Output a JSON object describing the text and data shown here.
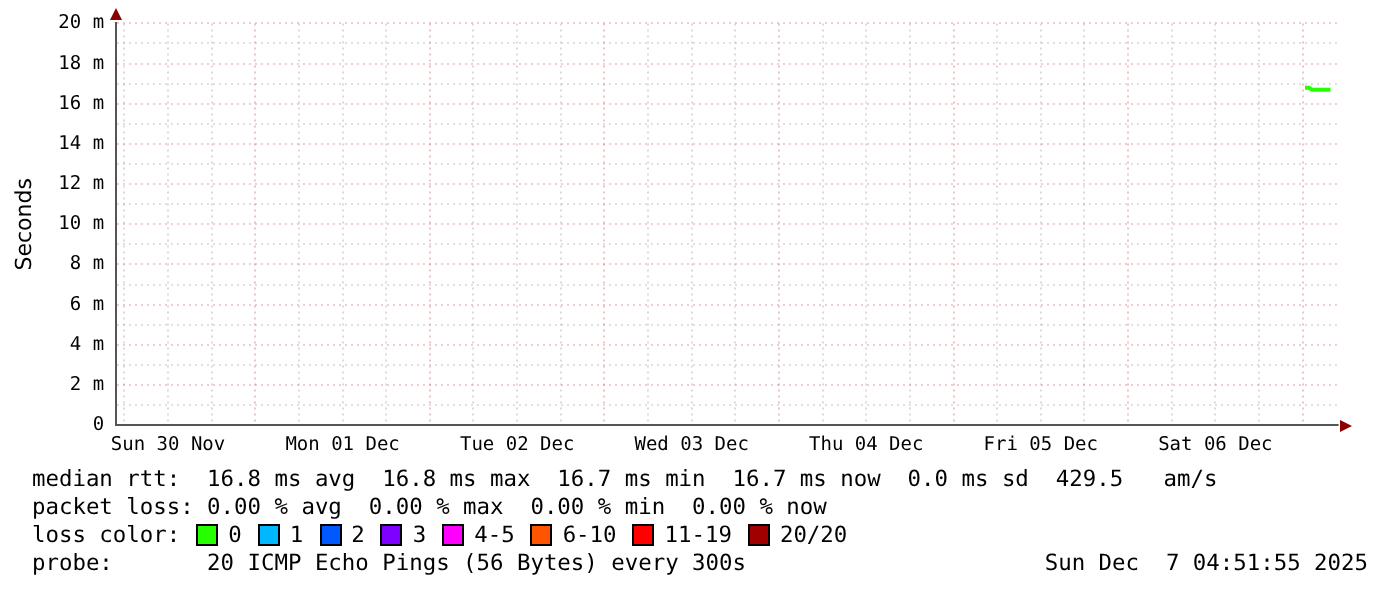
{
  "chart_data": {
    "type": "line",
    "ylabel": "Seconds",
    "x": [
      "2025-12-07T00:20",
      "2025-12-07T00:55",
      "2025-12-07T01:15",
      "2025-12-07T03:50"
    ],
    "xlim": [
      "2025-11-30T04:52",
      "2025-12-07T04:52"
    ],
    "xticks": [
      {
        "value": "2025-11-30T06:00",
        "label": null
      },
      {
        "value": "2025-11-30T12:00",
        "label": "Sun 30 Nov"
      },
      {
        "value": "2025-11-30T18:00",
        "label": null
      },
      {
        "value": "2025-12-01T00:00",
        "label": null
      },
      {
        "value": "2025-12-01T06:00",
        "label": null
      },
      {
        "value": "2025-12-01T12:00",
        "label": "Mon 01 Dec"
      },
      {
        "value": "2025-12-01T18:00",
        "label": null
      },
      {
        "value": "2025-12-02T00:00",
        "label": null
      },
      {
        "value": "2025-12-02T06:00",
        "label": null
      },
      {
        "value": "2025-12-02T12:00",
        "label": "Tue 02 Dec"
      },
      {
        "value": "2025-12-02T18:00",
        "label": null
      },
      {
        "value": "2025-12-03T00:00",
        "label": null
      },
      {
        "value": "2025-12-03T06:00",
        "label": null
      },
      {
        "value": "2025-12-03T12:00",
        "label": "Wed 03 Dec"
      },
      {
        "value": "2025-12-03T18:00",
        "label": null
      },
      {
        "value": "2025-12-04T00:00",
        "label": null
      },
      {
        "value": "2025-12-04T06:00",
        "label": null
      },
      {
        "value": "2025-12-04T12:00",
        "label": "Thu 04 Dec"
      },
      {
        "value": "2025-12-04T18:00",
        "label": null
      },
      {
        "value": "2025-12-05T00:00",
        "label": null
      },
      {
        "value": "2025-12-05T06:00",
        "label": null
      },
      {
        "value": "2025-12-05T12:00",
        "label": "Fri 05 Dec"
      },
      {
        "value": "2025-12-05T18:00",
        "label": null
      },
      {
        "value": "2025-12-06T00:00",
        "label": null
      },
      {
        "value": "2025-12-06T06:00",
        "label": null
      },
      {
        "value": "2025-12-06T12:00",
        "label": "Sat 06 Dec"
      },
      {
        "value": "2025-12-06T18:00",
        "label": null
      },
      {
        "value": "2025-12-07T00:00",
        "label": null
      }
    ],
    "ylim": [
      0,
      20
    ],
    "yticks": [
      0,
      {
        "value": 1,
        "label": null
      },
      {
        "value": 2,
        "label": "2 m"
      },
      {
        "value": 3,
        "label": null
      },
      {
        "value": 4,
        "label": "4 m"
      },
      {
        "value": 5,
        "label": null
      },
      {
        "value": 6,
        "label": "6 m"
      },
      {
        "value": 7,
        "label": null
      },
      {
        "value": 8,
        "label": "8 m"
      },
      {
        "value": 9,
        "label": null
      },
      {
        "value": 10,
        "label": "10 m"
      },
      {
        "value": 11,
        "label": null
      },
      {
        "value": 12,
        "label": "12 m"
      },
      {
        "value": 13,
        "label": null
      },
      {
        "value": 14,
        "label": "14 m"
      },
      {
        "value": 15,
        "label": null
      },
      {
        "value": 16,
        "label": "16 m"
      },
      {
        "value": 17,
        "label": null
      },
      {
        "value": 18,
        "label": "18 m"
      },
      {
        "value": 19,
        "label": null
      },
      {
        "value": 20,
        "label": "20 m"
      }
    ],
    "grid": true,
    "legend": "bottom",
    "legend_title": "loss color:",
    "marker": "none",
    "line_style": "solid",
    "series": [
      {
        "name": "0",
        "color": "#26ff00",
        "values": [
          16.8,
          16.8,
          16.7,
          16.7
        ]
      },
      {
        "name": "1",
        "color": "#00b8ff",
        "values": [
          null,
          null,
          null,
          null
        ]
      },
      {
        "name": "2",
        "color": "#0059ff",
        "values": [
          null,
          null,
          null,
          null
        ]
      },
      {
        "name": "3",
        "color": "#7e00ff",
        "values": [
          null,
          null,
          null,
          null
        ]
      },
      {
        "name": "4-5",
        "color": "#ff00ff",
        "values": [
          null,
          null,
          null,
          null
        ]
      },
      {
        "name": "6-10",
        "color": "#ff5500",
        "values": [
          null,
          null,
          null,
          null
        ]
      },
      {
        "name": "11-19",
        "color": "#ff0000",
        "values": [
          null,
          null,
          null,
          null
        ]
      },
      {
        "name": "20/20",
        "color": "#a10000",
        "values": [
          null,
          null,
          null,
          null
        ]
      }
    ],
    "annotations": [
      "median rtt:  16.8 ms avg  16.8 ms max  16.7 ms min  16.7 ms now  0.0 ms sd  429.5   am/s",
      "packet loss: 0.00 % avg  0.00 % max  0.00 % min  0.00 % now",
      "probe:       20 ICMP Echo Pings (56 Bytes) every 300s",
      "Sun Dec  7 04:51:55 2025"
    ]
  }
}
